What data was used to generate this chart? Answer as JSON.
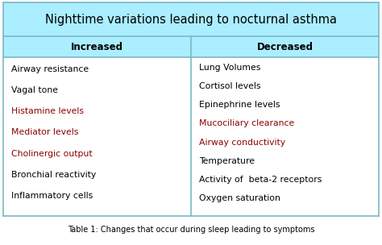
{
  "title": "Nighttime variations leading to nocturnal asthma",
  "col1_header": "Increased",
  "col2_header": "Decreased",
  "col1_items": [
    {
      "text": "Airway resistance",
      "color": "#000000"
    },
    {
      "text": "Vagal tone",
      "color": "#000000"
    },
    {
      "text": "Histamine levels",
      "color": "#8B0000"
    },
    {
      "text": "Mediator levels",
      "color": "#8B0000"
    },
    {
      "text": "Cholinergic output",
      "color": "#8B0000"
    },
    {
      "text": "Bronchial reactivity",
      "color": "#000000"
    },
    {
      "text": "Inflammatory cells",
      "color": "#000000"
    }
  ],
  "col2_items": [
    {
      "text": "Lung Volumes",
      "color": "#000000"
    },
    {
      "text": "Cortisol levels",
      "color": "#000000"
    },
    {
      "text": "Epinephrine levels",
      "color": "#000000"
    },
    {
      "text": "Mucociliary clearance",
      "color": "#8B0000"
    },
    {
      "text": "Airway conductivity",
      "color": "#8B0000"
    },
    {
      "text": "Temperature",
      "color": "#000000"
    },
    {
      "text": "Activity of  beta-2 receptors",
      "color": "#000000"
    },
    {
      "text": "Oxygen saturation",
      "color": "#000000"
    }
  ],
  "caption": "Table 1: Changes that occur during sleep leading to symptoms",
  "bg_color": "#ffffff",
  "header_bg": "#aaeeff",
  "title_bg": "#aaeeff",
  "border_color": "#7ab8c8",
  "title_fontsize": 10.5,
  "header_fontsize": 8.5,
  "item_fontsize": 7.8,
  "caption_fontsize": 7.0
}
